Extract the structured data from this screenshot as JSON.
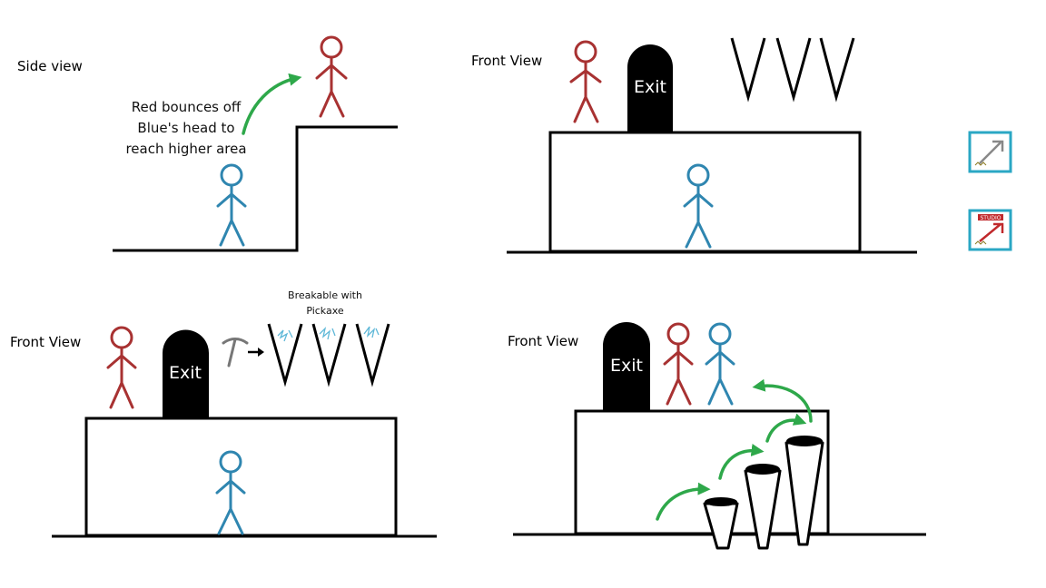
{
  "panels": {
    "top_left": {
      "view_label": "Side view",
      "annotation_lines": [
        "Red bounces off",
        "Blue's head to",
        "reach higher area"
      ]
    },
    "top_right": {
      "view_label": "Front View",
      "exit_label": "Exit"
    },
    "bottom_left": {
      "view_label": "Front View",
      "exit_label": "Exit",
      "annotation_lines": [
        "Breakable with",
        "Pickaxe"
      ]
    },
    "bottom_right": {
      "view_label": "Front View",
      "exit_label": "Exit"
    }
  },
  "toolbar": {
    "expand_icon": "expand-arrow-icon",
    "studio_icon": "studio-icon",
    "studio_label": "STUDIO"
  },
  "colors": {
    "red_character": "#a83232",
    "blue_character": "#2f86b0",
    "arrow_green": "#2ea84a",
    "crack_cyan": "#5fb8d8",
    "toolbar_teal": "#2aa7c4",
    "studio_red": "#c0282b"
  }
}
